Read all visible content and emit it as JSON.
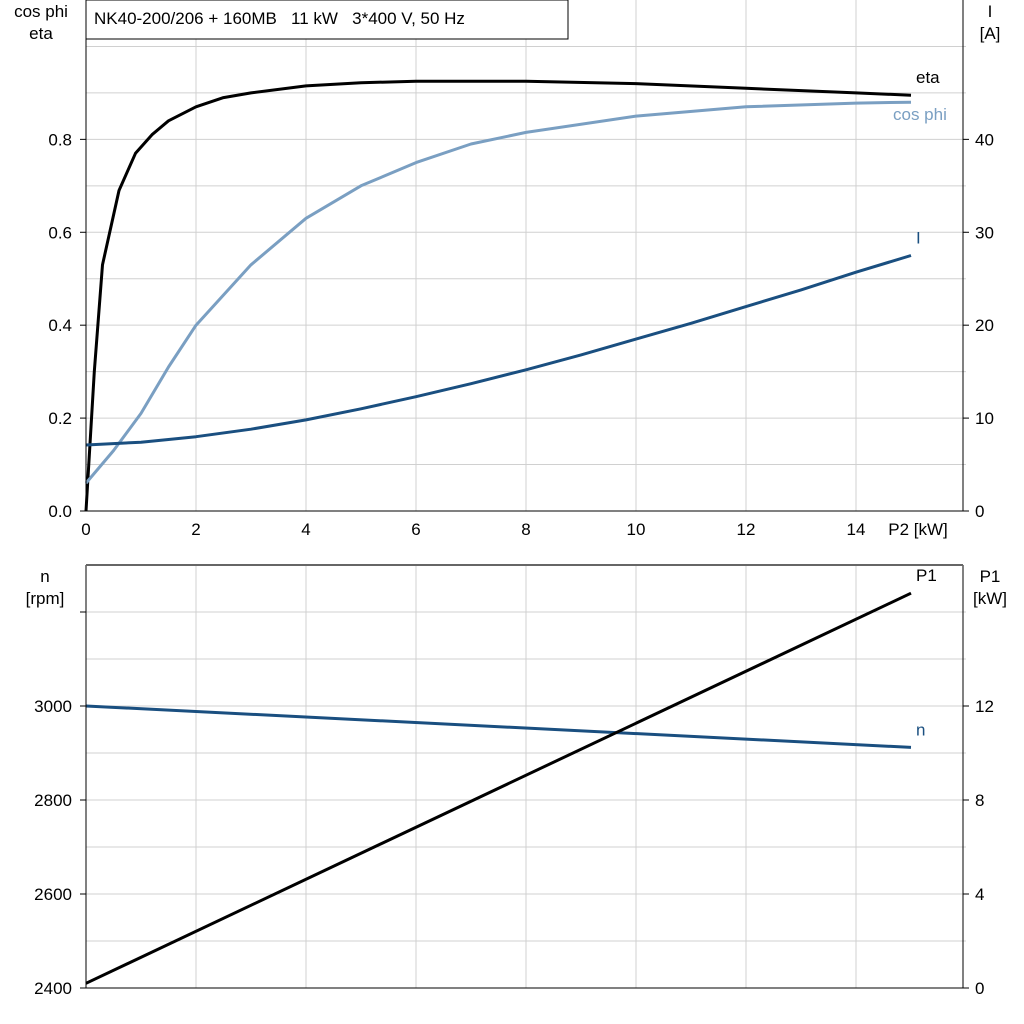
{
  "chart_data": [
    {
      "type": "line",
      "title": "NK40-200/206 + 160MB   11 kW   3*400 V, 50 Hz",
      "xlabel": "P2 [kW]",
      "ylabel_left": [
        "cos phi",
        "eta"
      ],
      "ylabel_right": [
        "I",
        "[A]"
      ],
      "xlim": [
        0,
        16
      ],
      "ylim_left": [
        0,
        1.1
      ],
      "ylim_right": [
        0,
        55
      ],
      "x_ticks": [
        "0",
        "2",
        "4",
        "6",
        "8",
        "10",
        "12",
        "14"
      ],
      "y_ticks_left": [
        "0.0",
        "0.2",
        "0.4",
        "0.6",
        "0.8"
      ],
      "y_ticks_right": [
        "0",
        "10",
        "20",
        "30",
        "40"
      ],
      "grid": true,
      "series": [
        {
          "name": "eta",
          "axis": "left",
          "color": "#000000",
          "x": [
            0,
            0.15,
            0.3,
            0.6,
            0.9,
            1.2,
            1.5,
            2,
            2.5,
            3,
            4,
            5,
            6,
            8,
            10,
            12,
            14,
            15
          ],
          "y": [
            0,
            0.3,
            0.53,
            0.69,
            0.77,
            0.81,
            0.84,
            0.87,
            0.89,
            0.9,
            0.915,
            0.922,
            0.925,
            0.925,
            0.92,
            0.91,
            0.9,
            0.895
          ]
        },
        {
          "name": "cos phi",
          "axis": "left",
          "color": "#7a9fc2",
          "x": [
            0,
            0.5,
            1,
            1.5,
            2,
            3,
            4,
            5,
            6,
            7,
            8,
            10,
            12,
            14,
            15
          ],
          "y": [
            0.06,
            0.13,
            0.21,
            0.31,
            0.4,
            0.53,
            0.63,
            0.7,
            0.75,
            0.79,
            0.815,
            0.85,
            0.87,
            0.878,
            0.88
          ]
        },
        {
          "name": "I",
          "axis": "right",
          "color": "#1a4f80",
          "x": [
            0,
            1,
            2,
            3,
            4,
            5,
            6,
            7,
            8,
            9,
            10,
            11,
            12,
            13,
            14,
            15
          ],
          "y": [
            7.1,
            7.4,
            8.0,
            8.8,
            9.8,
            11.0,
            12.3,
            13.7,
            15.2,
            16.8,
            18.5,
            20.2,
            22.0,
            23.8,
            25.7,
            27.5
          ]
        }
      ]
    },
    {
      "type": "line",
      "xlim": [
        0,
        16
      ],
      "ylabel_left": [
        "n",
        "[rpm]"
      ],
      "ylabel_right": [
        "P1",
        "[kW]"
      ],
      "ylim_left": [
        2400,
        3300
      ],
      "ylim_right": [
        0,
        18
      ],
      "y_ticks_left": [
        "2400",
        "2600",
        "2800",
        "3000"
      ],
      "y_ticks_right": [
        "0",
        "4",
        "8",
        "12"
      ],
      "grid": true,
      "series": [
        {
          "name": "n",
          "axis": "left",
          "color": "#1a4f80",
          "x": [
            0,
            15
          ],
          "y": [
            3000,
            2912
          ]
        },
        {
          "name": "P1",
          "axis": "right",
          "color": "#000000",
          "x": [
            0,
            15
          ],
          "y": [
            0.2,
            16.8
          ]
        }
      ]
    }
  ]
}
